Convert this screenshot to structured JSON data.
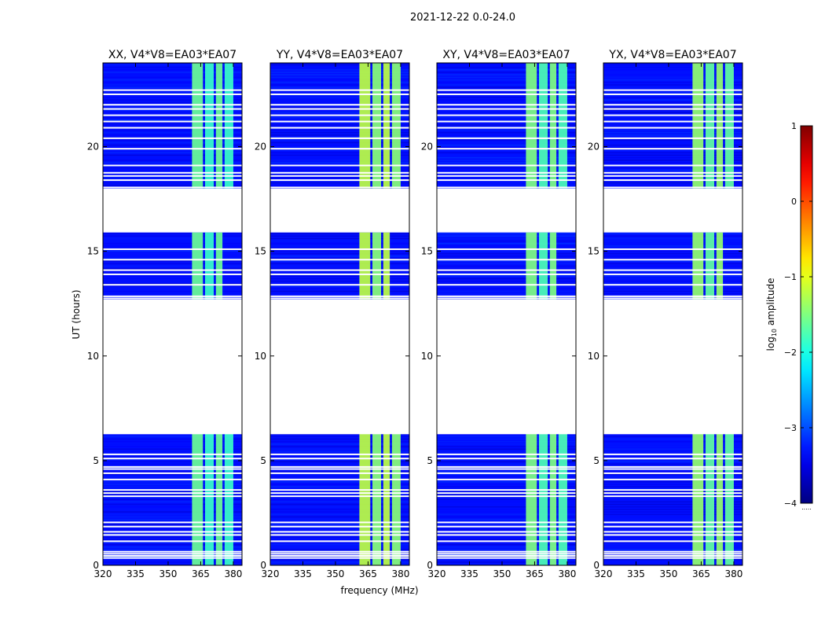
{
  "chart_data": {
    "type": "heatmap",
    "suptitle": "2021-12-22 0.0-24.0",
    "xlabel": "frequency (MHz)",
    "ylabel": "UT (hours)",
    "xlim": [
      320,
      384
    ],
    "ylim": [
      0,
      24
    ],
    "xticks": [
      320,
      335,
      350,
      365,
      380
    ],
    "yticks": [
      0,
      5,
      10,
      15,
      20
    ],
    "panels": [
      {
        "title": "XX, V4*V8=EA03*EA07",
        "hot_level": -1.6
      },
      {
        "title": "YY, V4*V8=EA03*EA07",
        "hot_level": -1.2
      },
      {
        "title": "XY, V4*V8=EA03*EA07",
        "hot_level": -1.5
      },
      {
        "title": "YX, V4*V8=EA03*EA07",
        "hot_level": -1.4
      }
    ],
    "bright_band_mhz": [
      361,
      380
    ],
    "bright_band_columns_mhz": [
      [
        361,
        366
      ],
      [
        367,
        371
      ],
      [
        372,
        375
      ],
      [
        376,
        380
      ]
    ],
    "data_end_mhz": 384,
    "bright_band_end_early_mhz": 376,
    "background_level": -3.3,
    "data_segments_hours": [
      [
        0,
        6.3
      ],
      [
        12.7,
        15.9
      ],
      [
        18.0,
        24.0
      ]
    ],
    "flagged_rows_hours": [
      0.35,
      0.45,
      0.55,
      0.65,
      1.15,
      1.45,
      1.6,
      1.85,
      2.05,
      3.3,
      3.45,
      3.6,
      4.1,
      4.4,
      4.6,
      4.7,
      5.1,
      5.3,
      6.3,
      12.75,
      12.85,
      13.4,
      13.9,
      14.1,
      14.6,
      15.1,
      18.05,
      18.4,
      18.6,
      18.75,
      19.1,
      19.9,
      20.4,
      20.9,
      21.2,
      21.5,
      21.8,
      22.0,
      22.5,
      22.7
    ],
    "colorbar": {
      "label": "log",
      "label_sub": "10",
      "label_tail": " amplitude",
      "min": -4,
      "max": 1,
      "ticks": [
        1,
        0,
        -1,
        -2,
        -3,
        -4
      ],
      "tick_labels": [
        "1",
        "0",
        "−1",
        "−2",
        "−3",
        "−4"
      ],
      "colormap": "jet",
      "footer": "....."
    }
  }
}
